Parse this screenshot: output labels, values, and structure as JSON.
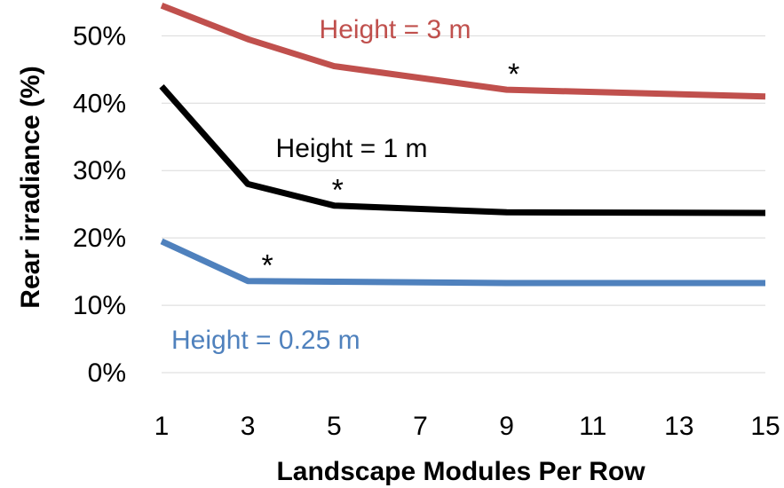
{
  "chart_data": {
    "type": "line",
    "xlabel": "Landscape Modules Per Row",
    "ylabel": "Rear irradiance  (%)",
    "x_ticks": [
      1,
      3,
      5,
      7,
      9,
      11,
      13,
      15
    ],
    "y_ticks": [
      "0%",
      "10%",
      "20%",
      "30%",
      "40%",
      "50%"
    ],
    "y_tick_values": [
      0,
      10,
      20,
      30,
      40,
      50
    ],
    "xlim": [
      1,
      15
    ],
    "ylim": [
      0,
      54
    ],
    "grid": true,
    "series": [
      {
        "label": "Height = 3 m",
        "color": "#c0504d",
        "x": [
          1,
          3,
          5,
          9,
          15
        ],
        "y": [
          54.5,
          49.5,
          45.5,
          42.0,
          41.0
        ],
        "marker_x": 9
      },
      {
        "label": "Height = 1 m",
        "color": "#000000",
        "x": [
          1,
          3,
          5,
          9,
          15
        ],
        "y": [
          42.5,
          28.0,
          24.8,
          23.8,
          23.7
        ],
        "marker_x": 5
      },
      {
        "label": "Height = 0.25 m",
        "color": "#4f81bd",
        "x": [
          1,
          3,
          5,
          9,
          15
        ],
        "y": [
          19.5,
          13.6,
          13.5,
          13.3,
          13.3
        ],
        "marker_x": 3
      }
    ],
    "marker_symbol": "*"
  }
}
